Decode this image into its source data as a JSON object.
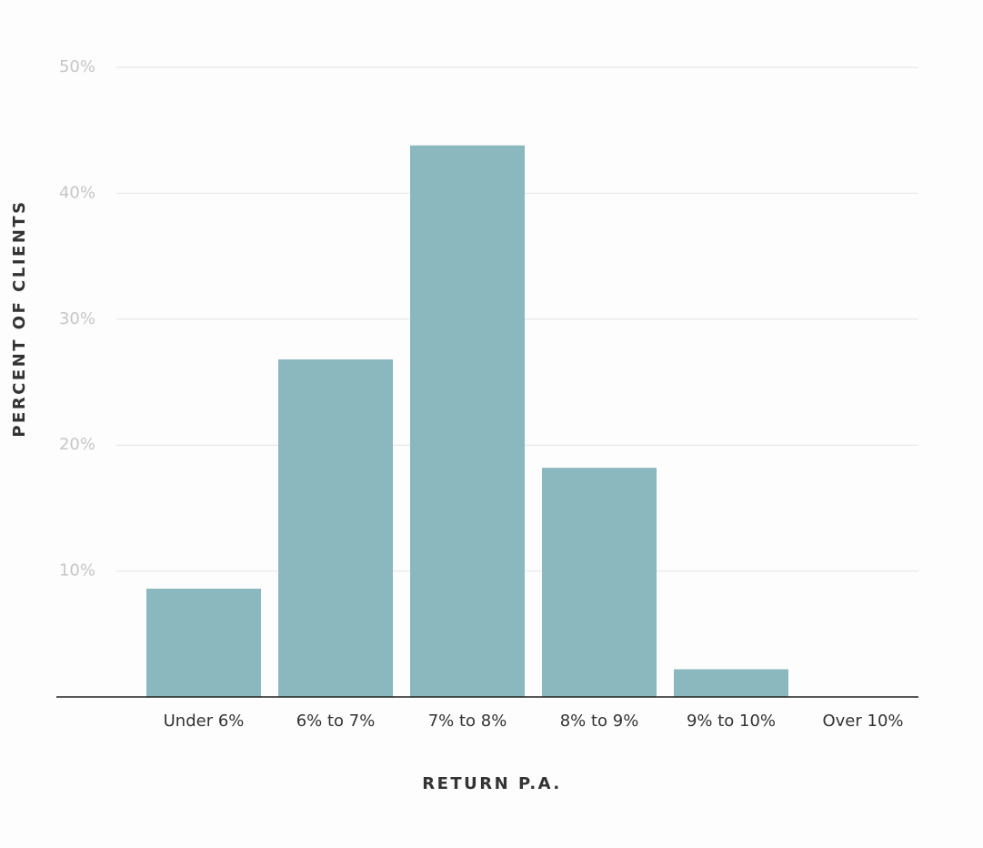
{
  "chart_data": {
    "type": "bar",
    "x_label": "RETURN P.A.",
    "y_label": "PERCENT OF CLIENTS",
    "categories": [
      "Under 6%",
      "6% to 7%",
      "7% to 8%",
      "8% to 9%",
      "9% to 10%",
      "Over 10%"
    ],
    "values": [
      8.6,
      26.8,
      43.8,
      18.2,
      2.2,
      0
    ],
    "color": "#8bb7bf",
    "ylim": [
      0,
      50
    ],
    "yticks": [
      {
        "value": 10,
        "label": "10%"
      },
      {
        "value": 20,
        "label": "20%"
      },
      {
        "value": 30,
        "label": "30%"
      },
      {
        "value": 40,
        "label": "40%"
      },
      {
        "value": 50,
        "label": "50%"
      }
    ],
    "grid": true
  }
}
